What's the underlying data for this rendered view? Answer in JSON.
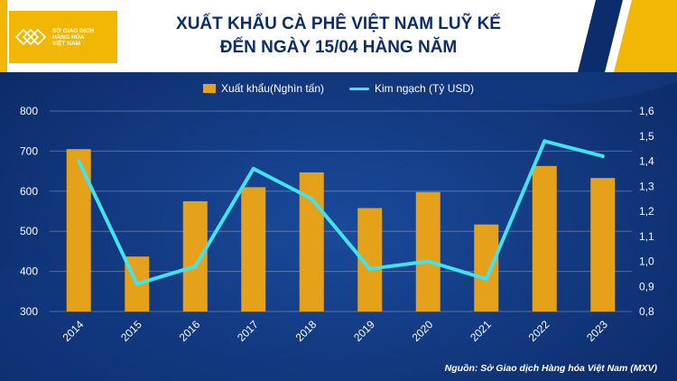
{
  "header": {
    "logo_text": "SỞ GIAO DỊCH\nHÀNG HÓA\nVIỆT NAM",
    "title_line1": "XUẤT KHẨU CÀ PHÊ VIỆT NAM LUỸ KẾ",
    "title_line2": "ĐẾN NGÀY 15/04 HÀNG NĂM"
  },
  "colors": {
    "background": "#0d2f6e",
    "bar": "#e5a11a",
    "line": "#41e3ef",
    "title": "#0b2d6b",
    "accent_gold": "#f2b705"
  },
  "source": "Nguồn: Sở Giao dịch Hàng hóa Việt Nam (MXV)",
  "chart_data": {
    "type": "bar",
    "categories": [
      "2014",
      "2015",
      "2016",
      "2017",
      "2018",
      "2019",
      "2020",
      "2021",
      "2022",
      "2023"
    ],
    "series": [
      {
        "name": "Xuất khẩu(Nghìn tấn)",
        "type": "bar",
        "axis": "left",
        "values": [
          705,
          437,
          575,
          610,
          647,
          558,
          598,
          517,
          663,
          633
        ]
      },
      {
        "name": "Kim ngạch (Tỷ USD)",
        "type": "line",
        "axis": "right",
        "values": [
          1.4,
          0.91,
          0.98,
          1.37,
          1.25,
          0.97,
          1.0,
          0.93,
          1.48,
          1.42
        ]
      }
    ],
    "ylim_left": [
      300,
      800
    ],
    "yticks_left": [
      "300",
      "400",
      "500",
      "600",
      "700",
      "800"
    ],
    "ylim_right": [
      0.8,
      1.6
    ],
    "yticks_right": [
      "0,8",
      "0,9",
      "1,0",
      "1,1",
      "1,2",
      "1,3",
      "1,4",
      "1,5",
      "1,6"
    ],
    "grid": true,
    "legend_position": "top-center"
  }
}
